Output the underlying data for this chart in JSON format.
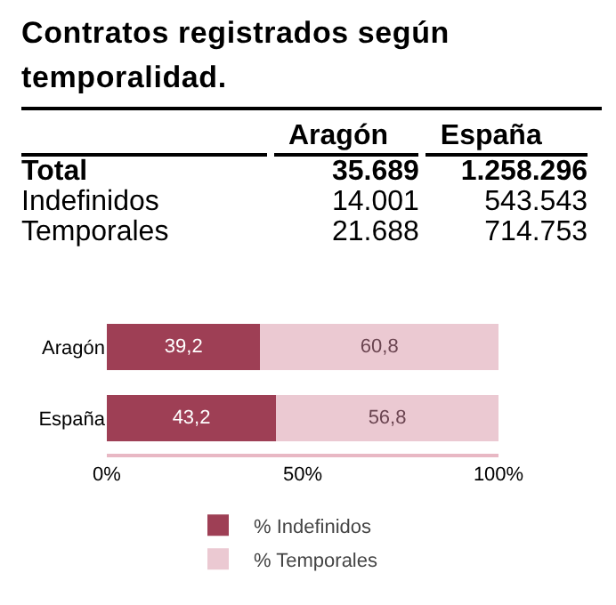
{
  "chart_data": [
    {
      "type": "other",
      "title": "Contratos registrados según temporalidad.",
      "categories": [
        "Aragón",
        "España"
      ],
      "y_categories": [
        "Total",
        "Indefinidos",
        "Temporales"
      ],
      "cell_labels": [
        [
          "35.689",
          "1.258.296"
        ],
        [
          "14.001",
          "543.543"
        ],
        [
          "21.688",
          "714.753"
        ]
      ]
    },
    {
      "type": "bar",
      "orientation": "horizontal",
      "stacked": true,
      "categories": [
        "Aragón",
        "España"
      ],
      "series": [
        {
          "name": "% Indefinidos",
          "color": "#9e3f55",
          "values": [
            39.2,
            43.2
          ],
          "value_labels": [
            "39,2",
            "43,2"
          ]
        },
        {
          "name": "% Temporales",
          "color": "#ebc9d2",
          "values": [
            60.8,
            56.8
          ],
          "value_labels": [
            "60,8",
            "56,8"
          ]
        }
      ],
      "xlim": [
        0,
        100
      ],
      "xticks": [
        {
          "value": 0,
          "label": "0%"
        },
        {
          "value": 50,
          "label": "50%"
        },
        {
          "value": 100,
          "label": "100%"
        }
      ],
      "legend": "bottom",
      "grid": false
    }
  ]
}
